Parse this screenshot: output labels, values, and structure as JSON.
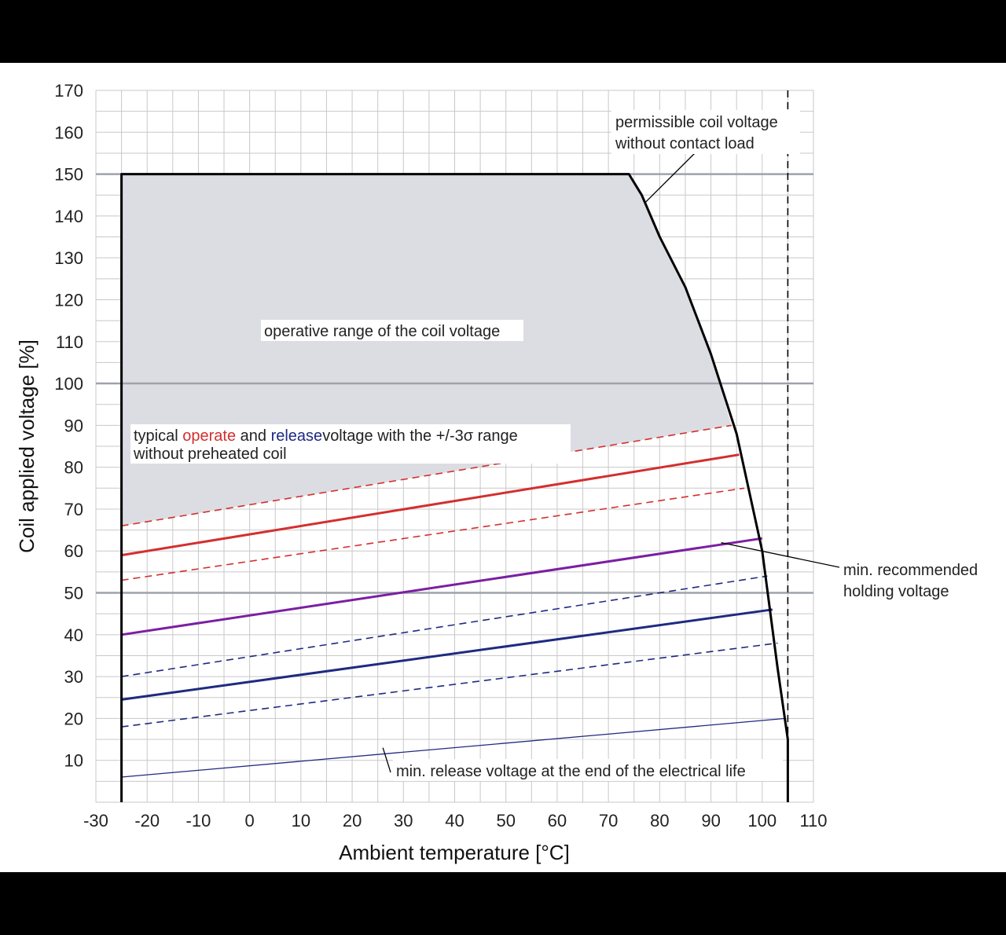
{
  "chart_data": {
    "type": "line",
    "xlabel": "Ambient temperature  [°C]",
    "ylabel": "Coil applied voltage [%]",
    "xlim": [
      -30,
      110
    ],
    "ylim": [
      0,
      170
    ],
    "xticks": [
      -30,
      -20,
      -10,
      0,
      10,
      20,
      30,
      40,
      50,
      60,
      70,
      80,
      90,
      100,
      110
    ],
    "yticks": [
      10,
      20,
      30,
      40,
      50,
      60,
      70,
      80,
      90,
      100,
      110,
      120,
      130,
      140,
      150,
      160,
      170
    ],
    "grid": true,
    "reference_lines": {
      "y": [
        50,
        100,
        150
      ],
      "x_dashed": 105
    },
    "colors": {
      "operate": "#d32f2f",
      "holding": "#7b1fa2",
      "release": "#1f2a80",
      "boundary": "#000000",
      "region_fill": "#dcdde2",
      "grid": "#c8c8c8",
      "reference": "#9ea2aa"
    },
    "operative_range_boundary": [
      [
        -25,
        0
      ],
      [
        -25,
        150
      ],
      [
        74,
        150
      ],
      [
        76.5,
        145
      ],
      [
        80,
        135
      ],
      [
        85,
        123
      ],
      [
        90,
        107
      ],
      [
        95,
        88
      ],
      [
        100,
        60
      ],
      [
        103,
        32
      ],
      [
        105,
        15
      ],
      [
        105,
        0
      ]
    ],
    "operative_region": [
      [
        -25,
        66
      ],
      [
        -25,
        150
      ],
      [
        74,
        150
      ],
      [
        76.5,
        145
      ],
      [
        80,
        135
      ],
      [
        85,
        123
      ],
      [
        90,
        107
      ],
      [
        94,
        90
      ]
    ],
    "series": [
      {
        "id": "operate-upper",
        "color": "#d32f2f",
        "style": "dashed",
        "width": 1.6,
        "points": [
          [
            -25,
            66
          ],
          [
            94,
            90
          ]
        ]
      },
      {
        "id": "operate-typical",
        "color": "#d32f2f",
        "style": "solid",
        "width": 3,
        "points": [
          [
            -25,
            59
          ],
          [
            95.5,
            83
          ]
        ]
      },
      {
        "id": "operate-lower",
        "color": "#d32f2f",
        "style": "dashed",
        "width": 1.6,
        "points": [
          [
            -25,
            53
          ],
          [
            96.5,
            75
          ]
        ]
      },
      {
        "id": "min-holding",
        "color": "#7b1fa2",
        "style": "solid",
        "width": 3,
        "points": [
          [
            -25,
            40
          ],
          [
            100,
            63
          ]
        ]
      },
      {
        "id": "release-upper",
        "color": "#1f2a80",
        "style": "dashed",
        "width": 1.6,
        "points": [
          [
            -25,
            30
          ],
          [
            101,
            54
          ]
        ]
      },
      {
        "id": "release-typical",
        "color": "#1f2a80",
        "style": "solid",
        "width": 3,
        "points": [
          [
            -25,
            24.5
          ],
          [
            102,
            46
          ]
        ]
      },
      {
        "id": "release-lower",
        "color": "#1f2a80",
        "style": "dashed",
        "width": 1.6,
        "points": [
          [
            -25,
            18
          ],
          [
            103,
            38
          ]
        ]
      },
      {
        "id": "min-release-end-of-life",
        "color": "#1f2a80",
        "style": "solid",
        "width": 1.3,
        "points": [
          [
            -25,
            6
          ],
          [
            104.5,
            20
          ]
        ]
      }
    ],
    "annotations": {
      "permissible": {
        "lines": [
          "permissible coil voltage",
          "without contact load"
        ],
        "leader": [
          [
            88,
            144
          ],
          [
            77,
            143
          ]
        ]
      },
      "operative": {
        "text": "operative range of the coil voltage"
      },
      "typical_prefix": "typical ",
      "typical_operate": "operate",
      "typical_and": " and ",
      "typical_release": "release",
      "typical_suffix": "voltage with the +/-3σ range",
      "typical_line2": "without preheated coil",
      "holding": {
        "lines": [
          "min. recommended",
          "holding voltage"
        ],
        "leader": [
          [
            92,
            62
          ]
        ]
      },
      "eol": {
        "text": "min. release voltage at the end of the electrical life",
        "leader": [
          [
            26,
            13
          ]
        ]
      }
    }
  }
}
